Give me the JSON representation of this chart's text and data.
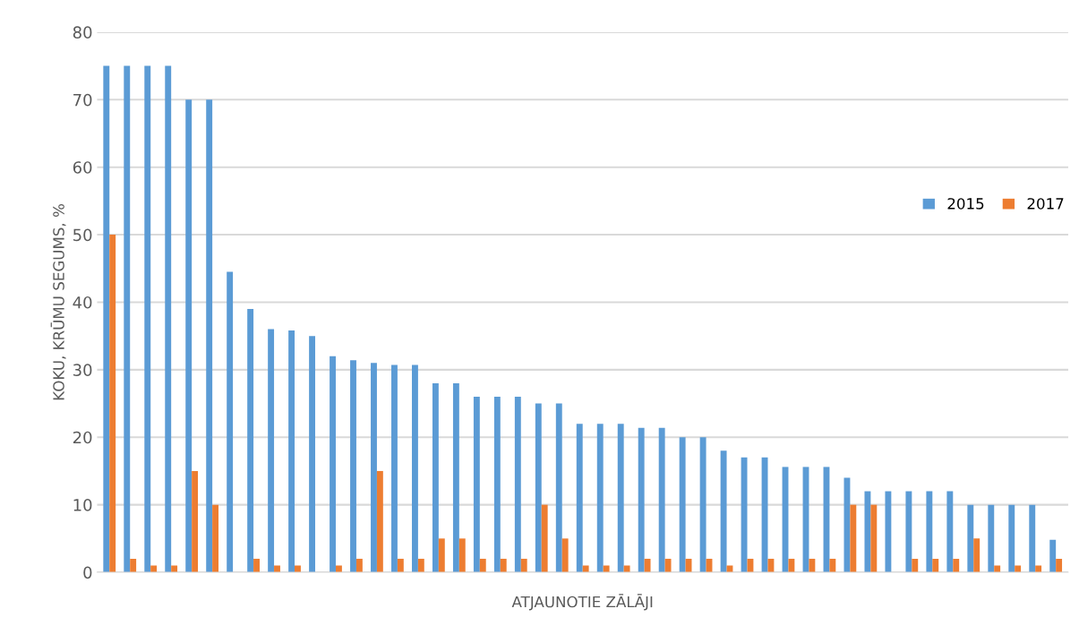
{
  "chart_data": {
    "type": "bar",
    "xlabel": "ATJAUNOTIE ZĀLĀJI",
    "ylabel": "KOKU, KRŪMU SEGUMS, %",
    "categories": [
      null,
      null,
      null,
      null,
      null,
      null,
      null,
      null,
      null,
      null,
      null,
      null,
      null,
      null,
      null,
      null,
      null,
      null,
      null,
      null,
      null,
      null,
      null,
      null,
      null,
      null,
      null,
      null,
      null,
      null,
      null,
      null,
      null,
      null,
      null,
      null,
      null,
      null,
      null,
      null,
      null,
      null,
      null,
      null,
      null,
      null,
      null
    ],
    "series": [
      {
        "name": "2015",
        "color": "#5b9bd5",
        "values": [
          75,
          75,
          75,
          75,
          70,
          70,
          44.5,
          39,
          36,
          35.8,
          35,
          32,
          31.4,
          31,
          30.7,
          30.7,
          28,
          28,
          26,
          26,
          26,
          25,
          25,
          22,
          22,
          22,
          21.4,
          21.4,
          20,
          20,
          18,
          17,
          17,
          15.6,
          15.6,
          15.6,
          14,
          12,
          12,
          12,
          12,
          12,
          10,
          10,
          10,
          10,
          4.8
        ]
      },
      {
        "name": "2017",
        "color": "#ed7d31",
        "values": [
          50,
          2,
          1,
          1,
          15,
          10,
          0,
          2,
          1,
          1,
          0,
          1,
          2,
          15,
          2,
          2,
          5,
          5,
          2,
          2,
          2,
          10,
          5,
          1,
          1,
          1,
          2,
          2,
          2,
          2,
          1,
          2,
          2,
          2,
          2,
          2,
          10,
          10,
          0,
          2,
          2,
          2,
          5,
          1,
          1,
          1,
          2
        ]
      }
    ],
    "ylim": [
      0,
      80
    ],
    "yticks": [
      0,
      10,
      20,
      30,
      40,
      50,
      60,
      70,
      80
    ],
    "grid": "y",
    "legend": "right"
  }
}
